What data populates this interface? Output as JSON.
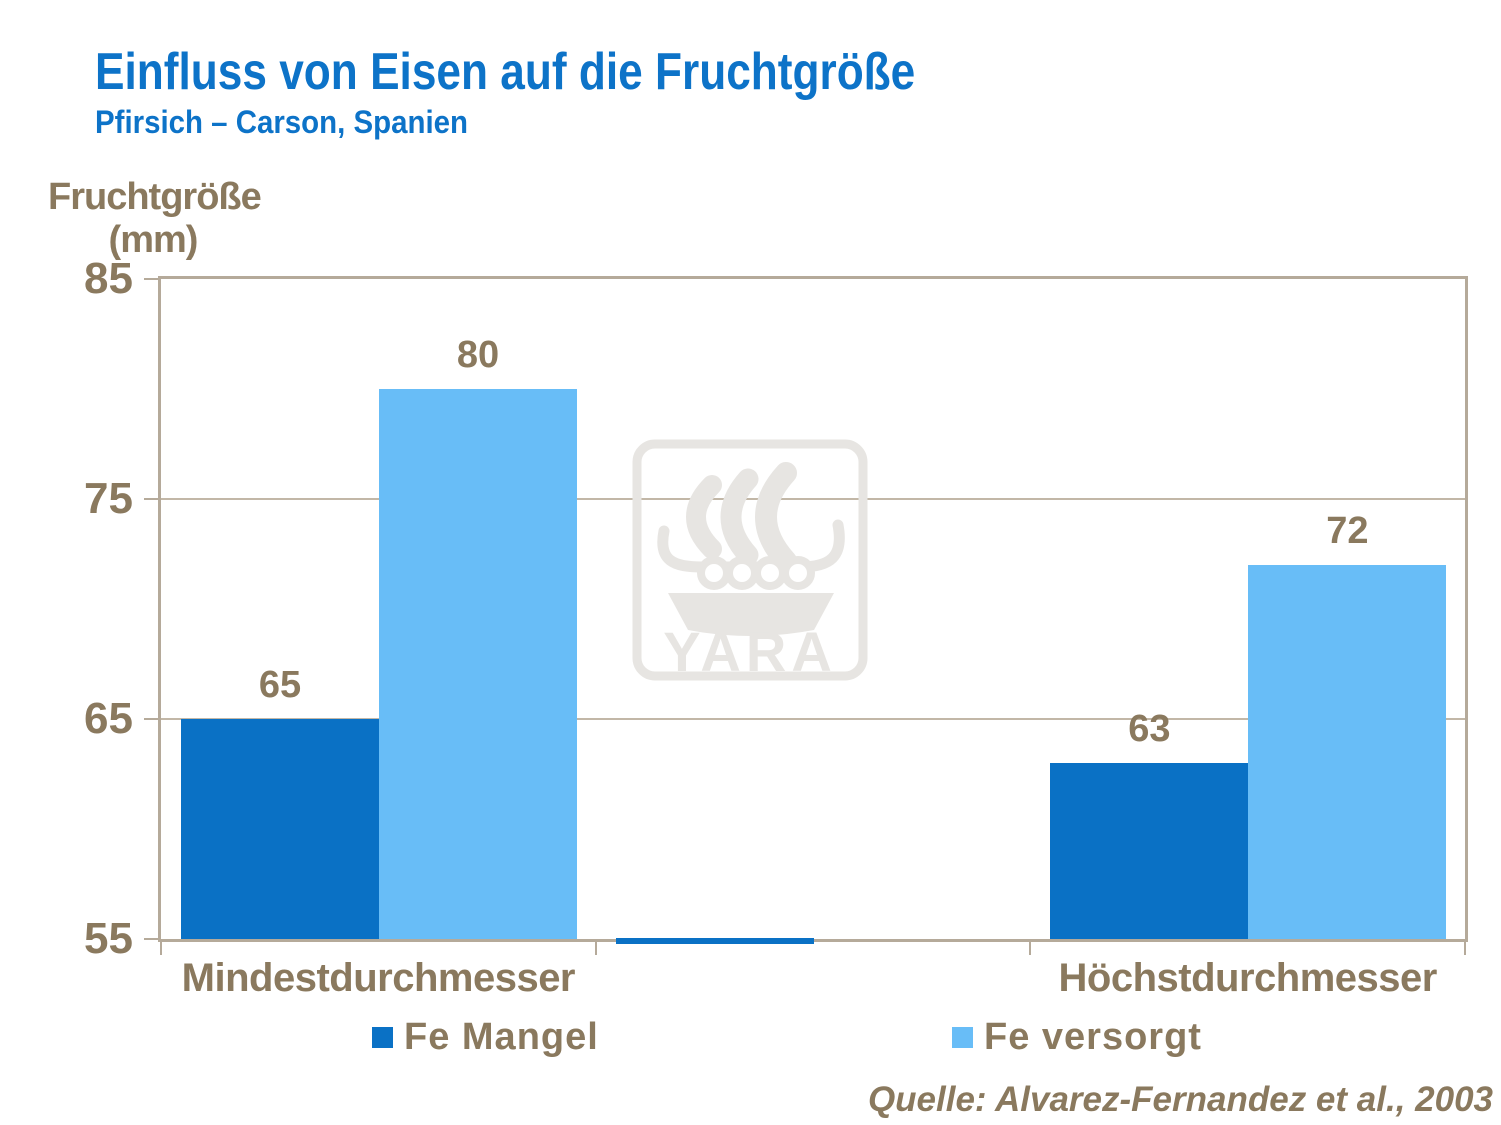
{
  "title": "Einfluss von Eisen auf die Fruchtgröße",
  "subtitle": "Pfirsich – Carson, Spanien",
  "source": "Quelle: Alvarez-Fernandez et al., 2003",
  "watermark": {
    "text": "YARA"
  },
  "colors": {
    "title_blue": "#0D73C8",
    "text_brown": "#8A795E",
    "axis_line": "#B5AA9A",
    "gridline": "#C2B7A7",
    "bar_dark_blue": "#0A71C5",
    "bar_light_blue": "#68BDF7",
    "watermark_gray": "#E7E5E2"
  },
  "chart_data": {
    "type": "bar",
    "title": "Einfluss von Eisen auf die Fruchtgröße",
    "subtitle": "Pfirsich – Carson, Spanien",
    "ylabel": "Fruchtgröße (mm)",
    "ylabel_lines": [
      "Fruchtgröße",
      "(mm)"
    ],
    "xlabel": "",
    "ylim": [
      55,
      85
    ],
    "yticks": [
      85,
      75,
      65,
      55
    ],
    "grid": "horizontal",
    "legend_position": "bottom",
    "categories": [
      "Mindestdurchmesser",
      "",
      "Höchstdurchmesser"
    ],
    "series": [
      {
        "name": "Fe Mangel",
        "color": "#0A71C5",
        "values": [
          65,
          55,
          63
        ]
      },
      {
        "name": "Fe versorgt",
        "color": "#68BDF7",
        "values": [
          80,
          null,
          72
        ]
      }
    ],
    "bar_labels": [
      [
        "65",
        "",
        "63"
      ],
      [
        "80",
        "",
        "72"
      ]
    ],
    "note": "middle category is empty; Fe Mangel value 55 appears as a thin sliver on the baseline"
  }
}
